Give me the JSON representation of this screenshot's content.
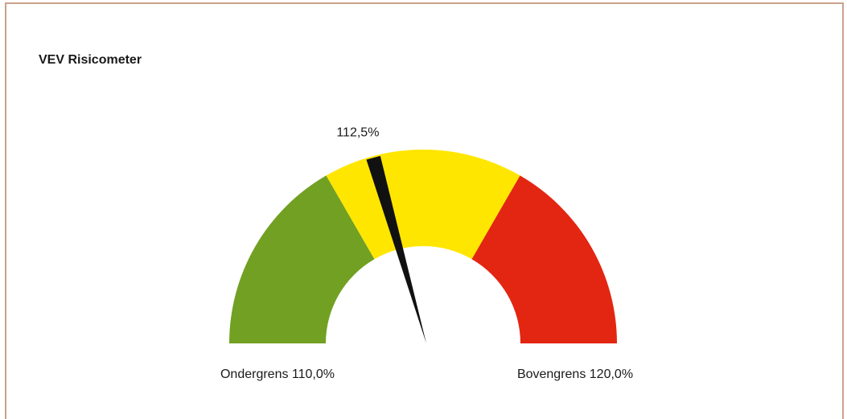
{
  "chart_data": {
    "type": "gauge",
    "title": "VEV Risicometer",
    "value": 112.5,
    "value_label": "112,5%",
    "ylim": [
      100,
      130
    ],
    "thresholds": [
      {
        "value": 110,
        "label": "Ondergrens 110,0%"
      },
      {
        "value": 120,
        "label": "Bovengrens 120,0%"
      }
    ],
    "colors": [
      "#72a022",
      "#ffe600",
      "#e32612"
    ],
    "needle_color": "#111111"
  }
}
